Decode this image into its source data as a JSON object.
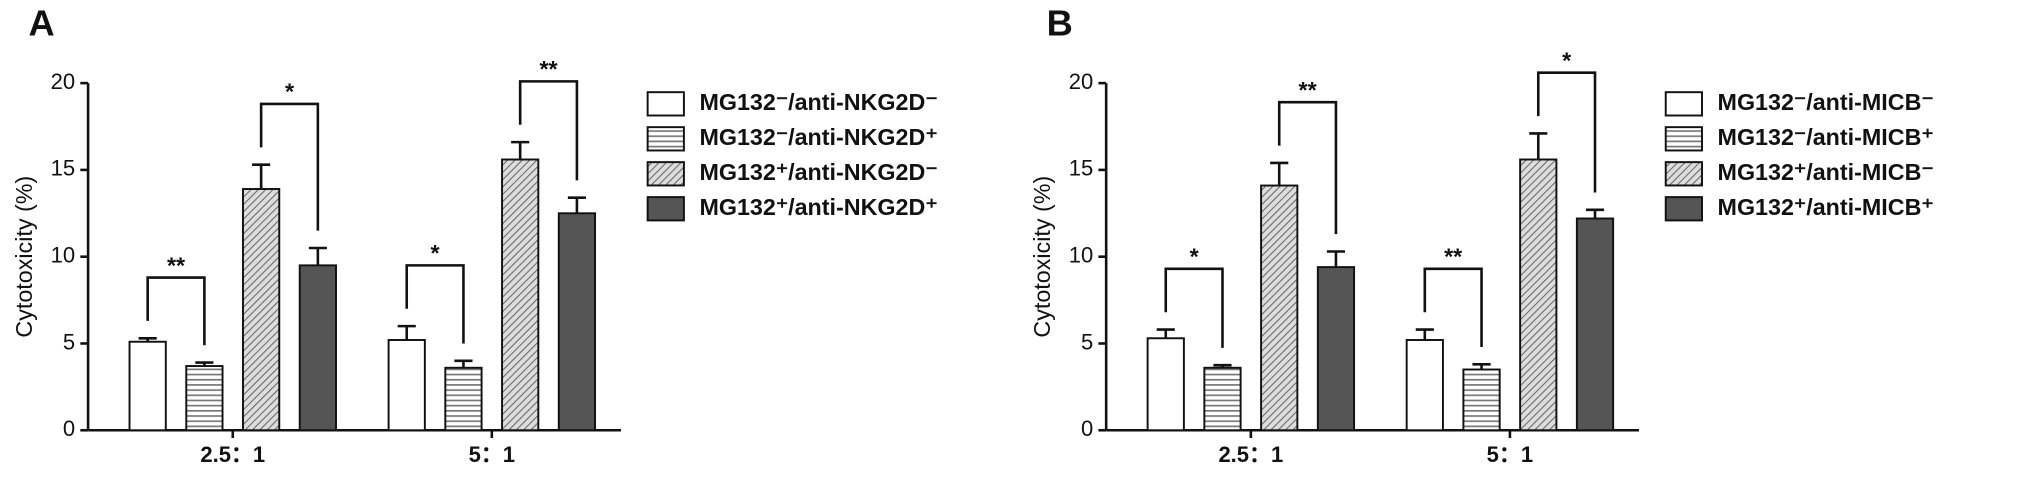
{
  "chart_data": [
    {
      "type": "bar",
      "panel": "A",
      "ylabel": "Cytotoxicity (%)",
      "categories": [
        "2.5：1",
        "5：1"
      ],
      "ylim": [
        0,
        20
      ],
      "yticks": [
        0,
        5,
        10,
        15,
        20
      ],
      "series": [
        {
          "name": "MG132⁻/anti-NKG2D⁻",
          "color": "#ffffff",
          "pattern": "none",
          "values": [
            5.1,
            5.2
          ],
          "errors": [
            0.2,
            0.8
          ]
        },
        {
          "name": "MG132⁻/anti-NKG2D⁺",
          "color": "#ffffff",
          "pattern": "horizontal",
          "values": [
            3.7,
            3.6
          ],
          "errors": [
            0.2,
            0.4
          ]
        },
        {
          "name": "MG132⁺/anti-NKG2D⁻",
          "color": "#bbbbbb",
          "pattern": "diagonal",
          "values": [
            13.9,
            15.6
          ],
          "errors": [
            1.4,
            1.0
          ]
        },
        {
          "name": "MG132⁺/anti-NKG2D⁺",
          "color": "#555555",
          "pattern": "none",
          "values": [
            9.5,
            12.5
          ],
          "errors": [
            1.0,
            0.9
          ]
        }
      ],
      "annotations": [
        "**",
        "*",
        "*",
        "**"
      ]
    },
    {
      "type": "bar",
      "panel": "B",
      "ylabel": "Cytotoxicity (%)",
      "categories": [
        "2.5：1",
        "5：1"
      ],
      "ylim": [
        0,
        20
      ],
      "yticks": [
        0,
        5,
        10,
        15,
        20
      ],
      "series": [
        {
          "name": "MG132⁻/anti-MICB⁻",
          "color": "#ffffff",
          "pattern": "none",
          "values": [
            5.3,
            5.2
          ],
          "errors": [
            0.5,
            0.6
          ]
        },
        {
          "name": "MG132⁻/anti-MICB⁺",
          "color": "#ffffff",
          "pattern": "horizontal",
          "values": [
            3.6,
            3.5
          ],
          "errors": [
            0.15,
            0.3
          ]
        },
        {
          "name": "MG132⁺/anti-MICB⁻",
          "color": "#bbbbbb",
          "pattern": "diagonal",
          "values": [
            14.1,
            15.6
          ],
          "errors": [
            1.3,
            1.5
          ]
        },
        {
          "name": "MG132⁺/anti-MICB⁺",
          "color": "#555555",
          "pattern": "none",
          "values": [
            9.4,
            12.2
          ],
          "errors": [
            0.9,
            0.5
          ]
        }
      ],
      "annotations": [
        "*",
        "**",
        "**",
        "*"
      ]
    }
  ]
}
